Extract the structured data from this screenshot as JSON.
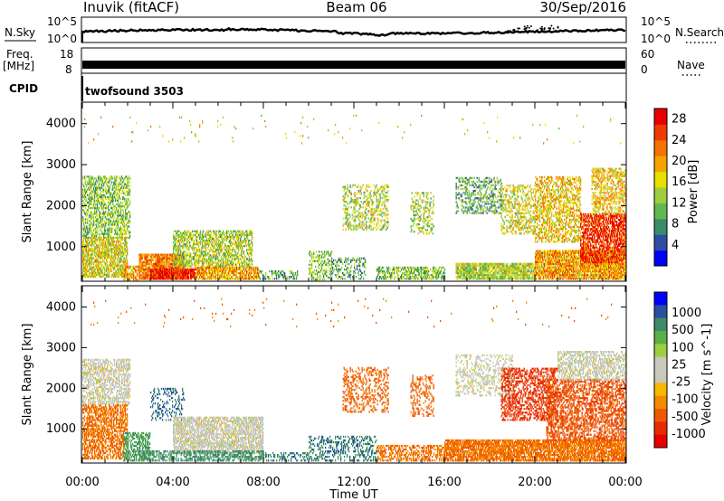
{
  "header": {
    "station": "Inuvik (fitACF)",
    "beam": "Beam 06",
    "date": "30/Sep/2016"
  },
  "strip_labels": {
    "nsky": "N.Sky",
    "nsky_ticks": [
      "10^5",
      "10^0"
    ],
    "nsearch": "N.Search",
    "nsearch_ticks": [
      "10^5",
      "10^0"
    ],
    "freq_line1": "Freq.",
    "freq_line2": "[MHz]",
    "freq_ticks": [
      "18",
      "8"
    ],
    "nave": "Nave",
    "nave_ticks": [
      "60",
      "0"
    ],
    "cpid": "CPID",
    "cpid_value": "twofsound 3503"
  },
  "colors": {
    "power_scale": [
      "#0000ff",
      "#2d4ea0",
      "#3a8c68",
      "#62b850",
      "#9bcf3c",
      "#e8e000",
      "#f5a300",
      "#f57300",
      "#f03a00",
      "#e80000"
    ],
    "velocity_scale": [
      "#0000ff",
      "#2b4ea0",
      "#3c8a6a",
      "#5ab048",
      "#9bd040",
      "#c8c8be",
      "#c8c8be",
      "#f5b800",
      "#f58a00",
      "#ee5a00",
      "#e82a00",
      "#e80000"
    ]
  },
  "chart_data": [
    {
      "type": "heatmap",
      "title": "Power",
      "xlabel": "Time UT",
      "ylabel": "Slant Range [km]",
      "x_ticks": [
        "00:00",
        "04:00",
        "08:00",
        "12:00",
        "16:00",
        "20:00",
        "00:00"
      ],
      "y_ticks": [
        "1000",
        "2000",
        "3000",
        "4000"
      ],
      "ylim": [
        180,
        4500
      ],
      "xlim_hours": [
        0,
        24
      ],
      "colorbar_label": "Power [dB]",
      "colorbar_ticks": [
        "4",
        "8",
        "12",
        "16",
        "20",
        "24",
        "28"
      ],
      "colorbar_range": [
        0,
        30
      ],
      "regions": [
        {
          "t": [
            0.0,
            2.1
          ],
          "r": [
            1200,
            2700
          ],
          "density": 0.55,
          "value": 12
        },
        {
          "t": [
            0.0,
            2.0
          ],
          "r": [
            250,
            1200
          ],
          "density": 0.7,
          "value": 16
        },
        {
          "t": [
            1.8,
            2.5
          ],
          "r": [
            180,
            500
          ],
          "density": 0.6,
          "value": 20
        },
        {
          "t": [
            2.5,
            4.5
          ],
          "r": [
            200,
            800
          ],
          "density": 0.85,
          "value": 22
        },
        {
          "t": [
            3.0,
            5.0
          ],
          "r": [
            200,
            450
          ],
          "density": 0.9,
          "value": 28
        },
        {
          "t": [
            4.0,
            7.5
          ],
          "r": [
            500,
            1400
          ],
          "density": 0.6,
          "value": 14
        },
        {
          "t": [
            5.0,
            7.8
          ],
          "r": [
            200,
            500
          ],
          "density": 0.8,
          "value": 20
        },
        {
          "t": [
            7.8,
            9.5
          ],
          "r": [
            200,
            400
          ],
          "density": 0.4,
          "value": 10
        },
        {
          "t": [
            10.0,
            11.0
          ],
          "r": [
            180,
            900
          ],
          "density": 0.4,
          "value": 12
        },
        {
          "t": [
            11.0,
            12.5
          ],
          "r": [
            200,
            700
          ],
          "density": 0.35,
          "value": 10
        },
        {
          "t": [
            11.5,
            13.5
          ],
          "r": [
            1400,
            2500
          ],
          "density": 0.35,
          "value": 14
        },
        {
          "t": [
            13.0,
            16.0
          ],
          "r": [
            200,
            500
          ],
          "density": 0.6,
          "value": 12
        },
        {
          "t": [
            14.5,
            15.5
          ],
          "r": [
            1300,
            2300
          ],
          "density": 0.35,
          "value": 14
        },
        {
          "t": [
            16.5,
            18.5
          ],
          "r": [
            1800,
            2700
          ],
          "density": 0.35,
          "value": 10
        },
        {
          "t": [
            16.5,
            20.0
          ],
          "r": [
            200,
            600
          ],
          "density": 0.8,
          "value": 14
        },
        {
          "t": [
            18.5,
            20.0
          ],
          "r": [
            1300,
            2500
          ],
          "density": 0.4,
          "value": 16
        },
        {
          "t": [
            20.0,
            22.0
          ],
          "r": [
            1100,
            2700
          ],
          "density": 0.5,
          "value": 18
        },
        {
          "t": [
            20.0,
            24.0
          ],
          "r": [
            200,
            900
          ],
          "density": 0.85,
          "value": 20
        },
        {
          "t": [
            22.0,
            24.0
          ],
          "r": [
            600,
            1800
          ],
          "density": 0.7,
          "value": 26
        },
        {
          "t": [
            22.5,
            24.0
          ],
          "r": [
            1800,
            2900
          ],
          "density": 0.5,
          "value": 18
        },
        {
          "t": [
            0.0,
            24.0
          ],
          "r": [
            3500,
            4200
          ],
          "density": 0.01,
          "value": 16
        }
      ]
    },
    {
      "type": "heatmap",
      "title": "Velocity",
      "xlabel": "Time UT",
      "ylabel": "Slant Range [km]",
      "x_ticks": [
        "00:00",
        "04:00",
        "08:00",
        "12:00",
        "16:00",
        "20:00",
        "00:00"
      ],
      "y_ticks": [
        "1000",
        "2000",
        "3000",
        "4000"
      ],
      "ylim": [
        180,
        4500
      ],
      "xlim_hours": [
        0,
        24
      ],
      "colorbar_label": "Velocity [m s^-1]",
      "colorbar_ticks": [
        "1000",
        "500",
        "100",
        "25",
        "-25",
        "-100",
        "-500",
        "-1000"
      ],
      "regions": [
        {
          "t": [
            0.0,
            2.1
          ],
          "r": [
            1600,
            2700
          ],
          "density": 0.55,
          "value": 0
        },
        {
          "t": [
            0.0,
            2.0
          ],
          "r": [
            250,
            1600
          ],
          "density": 0.6,
          "value": -150
        },
        {
          "t": [
            1.8,
            3.0
          ],
          "r": [
            200,
            900
          ],
          "density": 0.5,
          "value": 150
        },
        {
          "t": [
            3.0,
            4.5
          ],
          "r": [
            1200,
            2000
          ],
          "density": 0.25,
          "value": 300
        },
        {
          "t": [
            4.0,
            8.0
          ],
          "r": [
            400,
            1300
          ],
          "density": 0.7,
          "value": 0
        },
        {
          "t": [
            2.5,
            8.0
          ],
          "r": [
            200,
            450
          ],
          "density": 0.5,
          "value": 200
        },
        {
          "t": [
            8.0,
            10.0
          ],
          "r": [
            200,
            400
          ],
          "density": 0.35,
          "value": 250
        },
        {
          "t": [
            10.0,
            13.0
          ],
          "r": [
            200,
            800
          ],
          "density": 0.35,
          "value": 250
        },
        {
          "t": [
            11.5,
            13.5
          ],
          "r": [
            1400,
            2500
          ],
          "density": 0.3,
          "value": -200
        },
        {
          "t": [
            13.0,
            16.0
          ],
          "r": [
            200,
            600
          ],
          "density": 0.45,
          "value": -150
        },
        {
          "t": [
            14.5,
            15.5
          ],
          "r": [
            1300,
            2300
          ],
          "density": 0.3,
          "value": -200
        },
        {
          "t": [
            16.5,
            19.0
          ],
          "r": [
            1800,
            2800
          ],
          "density": 0.3,
          "value": 0
        },
        {
          "t": [
            16.0,
            24.0
          ],
          "r": [
            200,
            700
          ],
          "density": 0.8,
          "value": -150
        },
        {
          "t": [
            18.5,
            21.0
          ],
          "r": [
            1200,
            2500
          ],
          "density": 0.45,
          "value": -400
        },
        {
          "t": [
            20.5,
            24.0
          ],
          "r": [
            700,
            2200
          ],
          "density": 0.5,
          "value": -250
        },
        {
          "t": [
            21.0,
            24.0
          ],
          "r": [
            2200,
            2900
          ],
          "density": 0.5,
          "value": 0
        },
        {
          "t": [
            0.0,
            24.0
          ],
          "r": [
            3500,
            4200
          ],
          "density": 0.01,
          "value": -150
        }
      ]
    }
  ]
}
